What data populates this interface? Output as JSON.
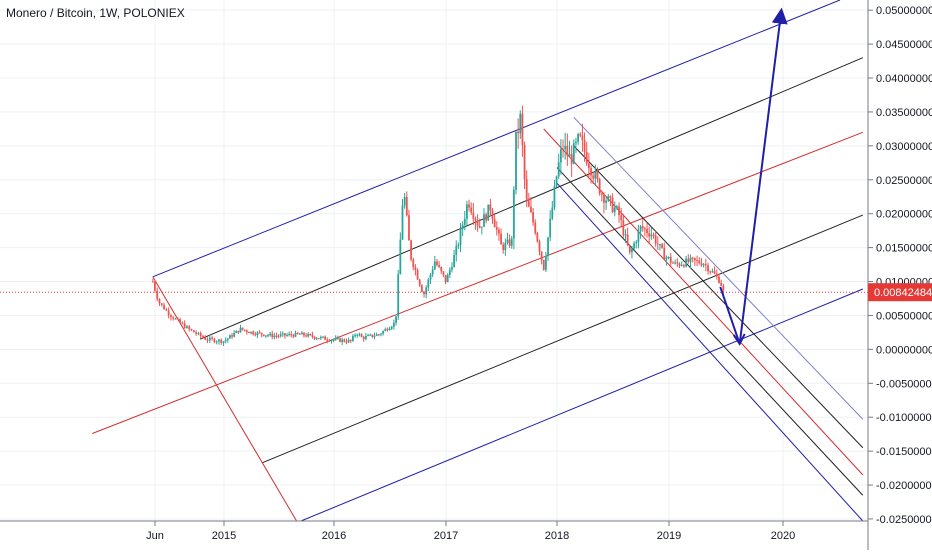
{
  "header": {
    "title": "Monero / Bitcoin, 1W, POLONIEX"
  },
  "colors": {
    "up": "#26a69a",
    "down": "#ef5350",
    "blue": "#1f1fa8",
    "black": "#222222",
    "red": "#d32f2f",
    "lightblue": "#8080c8",
    "grid": "#eef0f3",
    "priceLine": "#e53935"
  },
  "chart_data": {
    "type": "candlestick",
    "x_ticks": [
      "Jun",
      "2015",
      "2016",
      "2017",
      "2018",
      "2019",
      "2020"
    ],
    "y_ticks": [
      "0.05000000",
      "0.04500000",
      "0.04000000",
      "0.03500000",
      "0.03000000",
      "0.02500000",
      "0.02000000",
      "0.01500000",
      "0.01000000",
      "0.00500000",
      "0.00000000",
      "-0.00500000",
      "-0.01000000",
      "-0.01500000",
      "-0.02000000",
      "-0.02500000"
    ],
    "ylim": [
      -0.0253,
      0.0515
    ],
    "last_price": {
      "label": "0.00842484",
      "value": 0.00842484
    },
    "price_path": [
      {
        "t": 2014.4,
        "v": 0.01
      },
      {
        "t": 2014.45,
        "v": 0.007
      },
      {
        "t": 2014.55,
        "v": 0.005
      },
      {
        "t": 2014.7,
        "v": 0.003
      },
      {
        "t": 2014.85,
        "v": 0.0015
      },
      {
        "t": 2015.0,
        "v": 0.0012
      },
      {
        "t": 2015.15,
        "v": 0.003
      },
      {
        "t": 2015.25,
        "v": 0.0025
      },
      {
        "t": 2015.45,
        "v": 0.002
      },
      {
        "t": 2015.7,
        "v": 0.0022
      },
      {
        "t": 2015.95,
        "v": 0.0015
      },
      {
        "t": 2016.15,
        "v": 0.0012
      },
      {
        "t": 2016.2,
        "v": 0.0025
      },
      {
        "t": 2016.25,
        "v": 0.0017
      },
      {
        "t": 2016.4,
        "v": 0.0022
      },
      {
        "t": 2016.55,
        "v": 0.004
      },
      {
        "t": 2016.62,
        "v": 0.024
      },
      {
        "t": 2016.68,
        "v": 0.014
      },
      {
        "t": 2016.8,
        "v": 0.008
      },
      {
        "t": 2016.9,
        "v": 0.013
      },
      {
        "t": 2017.0,
        "v": 0.01
      },
      {
        "t": 2017.1,
        "v": 0.015
      },
      {
        "t": 2017.2,
        "v": 0.022
      },
      {
        "t": 2017.3,
        "v": 0.018
      },
      {
        "t": 2017.4,
        "v": 0.021
      },
      {
        "t": 2017.5,
        "v": 0.015
      },
      {
        "t": 2017.6,
        "v": 0.016
      },
      {
        "t": 2017.62,
        "v": 0.03
      },
      {
        "t": 2017.67,
        "v": 0.034
      },
      {
        "t": 2017.72,
        "v": 0.022
      },
      {
        "t": 2017.8,
        "v": 0.018
      },
      {
        "t": 2017.88,
        "v": 0.012
      },
      {
        "t": 2017.95,
        "v": 0.02
      },
      {
        "t": 2018.0,
        "v": 0.026
      },
      {
        "t": 2018.05,
        "v": 0.03
      },
      {
        "t": 2018.12,
        "v": 0.028
      },
      {
        "t": 2018.2,
        "v": 0.031
      },
      {
        "t": 2018.3,
        "v": 0.027
      },
      {
        "t": 2018.4,
        "v": 0.023
      },
      {
        "t": 2018.55,
        "v": 0.02
      },
      {
        "t": 2018.65,
        "v": 0.014
      },
      {
        "t": 2018.75,
        "v": 0.018
      },
      {
        "t": 2018.85,
        "v": 0.017
      },
      {
        "t": 2018.95,
        "v": 0.014
      },
      {
        "t": 2019.05,
        "v": 0.0125
      },
      {
        "t": 2019.2,
        "v": 0.013
      },
      {
        "t": 2019.3,
        "v": 0.0128
      },
      {
        "t": 2019.4,
        "v": 0.011
      },
      {
        "t": 2019.45,
        "v": 0.01
      },
      {
        "t": 2019.48,
        "v": 0.0084
      }
    ],
    "lines": [
      {
        "name": "blue-channel-upper",
        "color": "blue",
        "from": [
          2014.4,
          0.0107
        ],
        "to": [
          2020.5,
          0.0515
        ],
        "width": 1
      },
      {
        "name": "black-channel-upper",
        "color": "black",
        "from": [
          2014.8,
          0.0015
        ],
        "to": [
          2020.7,
          0.043
        ],
        "width": 1
      },
      {
        "name": "red-median-line",
        "color": "red",
        "from": [
          2013.85,
          -0.0124
        ],
        "to": [
          2020.7,
          0.032
        ],
        "width": 1
      },
      {
        "name": "black-channel-lower",
        "color": "black",
        "from": [
          2015.35,
          -0.0167
        ],
        "to": [
          2020.7,
          0.0198
        ],
        "width": 1
      },
      {
        "name": "blue-channel-lower",
        "color": "blue",
        "from": [
          2015.7,
          -0.0253
        ],
        "to": [
          2020.7,
          0.0089
        ],
        "width": 1
      },
      {
        "name": "red-handle-line",
        "color": "red",
        "from": [
          2014.4,
          0.0107
        ],
        "to": [
          2015.66,
          -0.0253
        ],
        "width": 1
      },
      {
        "name": "down-blue-upper",
        "color": "lightblue",
        "from": [
          2018.15,
          0.0342
        ],
        "to": [
          2020.7,
          -0.0103
        ],
        "width": 1
      },
      {
        "name": "down-black-upper",
        "color": "black",
        "from": [
          2018.15,
          0.03
        ],
        "to": [
          2020.7,
          -0.0145
        ],
        "width": 1
      },
      {
        "name": "down-red-median",
        "color": "red",
        "from": [
          2017.88,
          0.0325
        ],
        "to": [
          2020.7,
          -0.0185
        ],
        "width": 1
      },
      {
        "name": "down-black-lower",
        "color": "black",
        "from": [
          2018.0,
          0.0268
        ],
        "to": [
          2020.7,
          -0.0215
        ],
        "width": 1
      },
      {
        "name": "down-blue-lower",
        "color": "blue",
        "from": [
          2018.0,
          0.0245
        ],
        "to": [
          2020.7,
          -0.0253
        ],
        "width": 1
      }
    ],
    "projection": [
      [
        2019.45,
        0.0092
      ],
      [
        2019.62,
        0.0008
      ],
      [
        2019.98,
        0.0492
      ]
    ]
  }
}
